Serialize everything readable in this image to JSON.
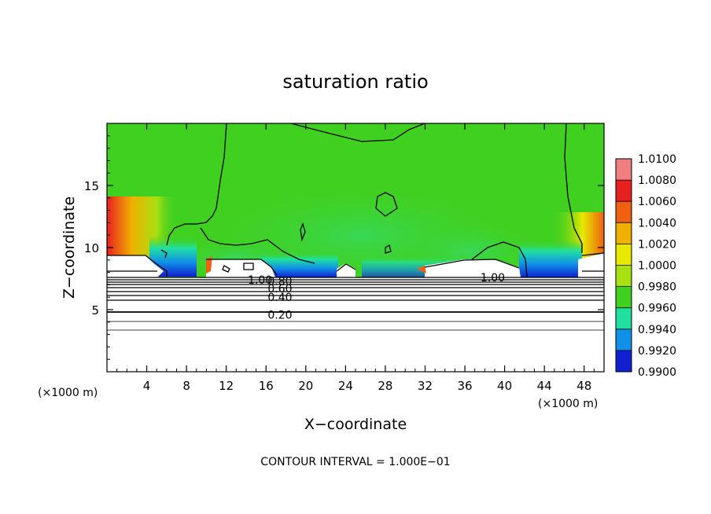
{
  "chart_data": {
    "type": "heatmap",
    "title": "saturation ratio",
    "xlabel": "X−coordinate",
    "ylabel": "Z−coordinate",
    "x_unit": "(×1000 m)",
    "y_unit": "(×1000 m)",
    "xlim": [
      0,
      50
    ],
    "ylim": [
      0,
      20
    ],
    "x_ticks": [
      4,
      8,
      12,
      16,
      20,
      24,
      28,
      32,
      36,
      40,
      44,
      48
    ],
    "y_ticks": [
      5,
      10,
      15
    ],
    "colorbar": {
      "levels": [
        "1.0100",
        "1.0080",
        "1.0060",
        "1.0040",
        "1.0020",
        "1.0000",
        "0.9980",
        "0.9960",
        "0.9940",
        "0.9920",
        "0.9900"
      ],
      "colors": [
        "#f08080",
        "#e82020",
        "#f06010",
        "#f0b000",
        "#e8e800",
        "#a8e010",
        "#40d020",
        "#20e0a0",
        "#1090e8",
        "#1020d0",
        "#5a0aa0"
      ]
    },
    "contour_labels": [
      {
        "text": "1.00",
        "x": 15.4,
        "z": 7.4
      },
      {
        "text": "0.80",
        "x": 17.4,
        "z": 7.3
      },
      {
        "text": "0.60",
        "x": 17.4,
        "z": 6.7
      },
      {
        "text": "0.40",
        "x": 17.4,
        "z": 6.0
      },
      {
        "text": "0.20",
        "x": 17.4,
        "z": 4.6
      },
      {
        "text": "1.00",
        "x": 38.8,
        "z": 7.6
      }
    ],
    "footer": "CONTOUR INTERVAL = 1.000E−01"
  }
}
